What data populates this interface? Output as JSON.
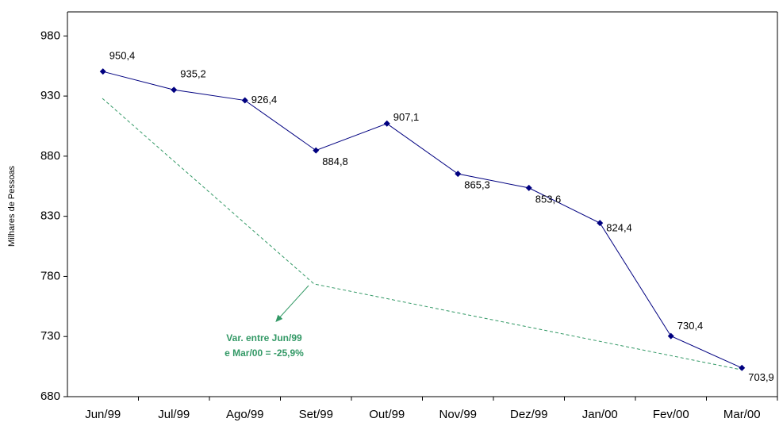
{
  "chart_data": {
    "type": "line",
    "y_label": "Milhares de Pessoas",
    "categories": [
      "Jun/99",
      "Jul/99",
      "Ago/99",
      "Set/99",
      "Out/99",
      "Nov/99",
      "Dez/99",
      "Jan/00",
      "Fev/00",
      "Mar/00"
    ],
    "series": [
      {
        "color": "#000080",
        "values": [
          950.4,
          935.2,
          926.4,
          884.8,
          907.1,
          865.3,
          853.6,
          824.4,
          730.4,
          703.9
        ],
        "value_labels": [
          "950,4",
          "935,2",
          "926,4",
          "884,8",
          "907,1",
          "865,3",
          "853,6",
          "824,4",
          "730,4",
          "703,9"
        ]
      }
    ],
    "ylim": [
      680,
      1000
    ],
    "yticks": [
      680,
      730,
      780,
      830,
      880,
      930,
      980
    ],
    "annotation": [
      "Var. entre Jun/99",
      "e Mar/00 = -25,9%"
    ]
  }
}
